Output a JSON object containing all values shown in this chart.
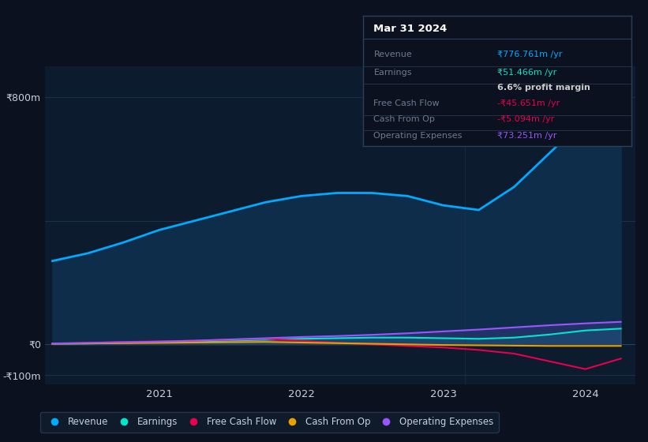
{
  "bg_color": "#0b111e",
  "plot_bg_color": "#0d1b2e",
  "grid_color": "#1e3050",
  "text_color": "#c8d0d9",
  "dim_text_color": "#6b7b8d",
  "x": [
    2020.25,
    2020.5,
    2020.75,
    2021.0,
    2021.25,
    2021.5,
    2021.75,
    2022.0,
    2022.25,
    2022.5,
    2022.75,
    2023.0,
    2023.25,
    2023.5,
    2023.75,
    2024.0,
    2024.25
  ],
  "revenue": [
    270,
    295,
    330,
    370,
    400,
    430,
    460,
    480,
    490,
    490,
    480,
    450,
    435,
    510,
    620,
    730,
    777
  ],
  "earnings": [
    2,
    3,
    5,
    8,
    10,
    12,
    15,
    18,
    20,
    22,
    22,
    20,
    18,
    22,
    32,
    45,
    51
  ],
  "free_cash_flow": [
    2,
    5,
    8,
    10,
    12,
    15,
    18,
    12,
    5,
    0,
    -5,
    -10,
    -18,
    -30,
    -55,
    -80,
    -46
  ],
  "cash_from_op": [
    2,
    3,
    4,
    5,
    6,
    7,
    8,
    6,
    4,
    2,
    0,
    -2,
    -3,
    -4,
    -5,
    -5,
    -5
  ],
  "operating_expenses": [
    3,
    5,
    7,
    9,
    12,
    16,
    20,
    24,
    27,
    31,
    36,
    42,
    48,
    55,
    62,
    68,
    73
  ],
  "revenue_color": "#00aaff",
  "earnings_color": "#00e5cc",
  "free_cash_flow_color": "#e8004d",
  "cash_from_op_color": "#e8a000",
  "operating_expenses_color": "#9955ff",
  "revenue_fill": "#0d2d4a",
  "ylim": [
    -130,
    900
  ],
  "xlim": [
    2020.2,
    2024.35
  ],
  "yticks": [
    -100,
    0,
    400,
    800
  ],
  "ytick_labels": [
    "-₹100m",
    "₹0",
    "",
    "₹800m"
  ],
  "xticks": [
    2021,
    2022,
    2023,
    2024
  ],
  "xtick_labels": [
    "2021",
    "2022",
    "2023",
    "2024"
  ],
  "infobox": {
    "date": "Mar 31 2024",
    "rows": [
      {
        "label": "Revenue",
        "value": "₹776.761m /yr",
        "value_color": "#00aaff"
      },
      {
        "label": "Earnings",
        "value": "₹51.466m /yr",
        "value_color": "#00e5cc"
      },
      {
        "label": "",
        "value": "6.6% profit margin",
        "value_color": "#cccccc",
        "bold": true
      },
      {
        "label": "Free Cash Flow",
        "value": "-₹45.651m /yr",
        "value_color": "#e8004d"
      },
      {
        "label": "Cash From Op",
        "value": "-₹5.094m /yr",
        "value_color": "#e8004d"
      },
      {
        "label": "Operating Expenses",
        "value": "₹73.251m /yr",
        "value_color": "#9955ff"
      }
    ]
  },
  "legend": [
    {
      "label": "Revenue",
      "color": "#00aaff"
    },
    {
      "label": "Earnings",
      "color": "#00e5cc"
    },
    {
      "label": "Free Cash Flow",
      "color": "#e8004d"
    },
    {
      "label": "Cash From Op",
      "color": "#e8a000"
    },
    {
      "label": "Operating Expenses",
      "color": "#9955ff"
    }
  ]
}
